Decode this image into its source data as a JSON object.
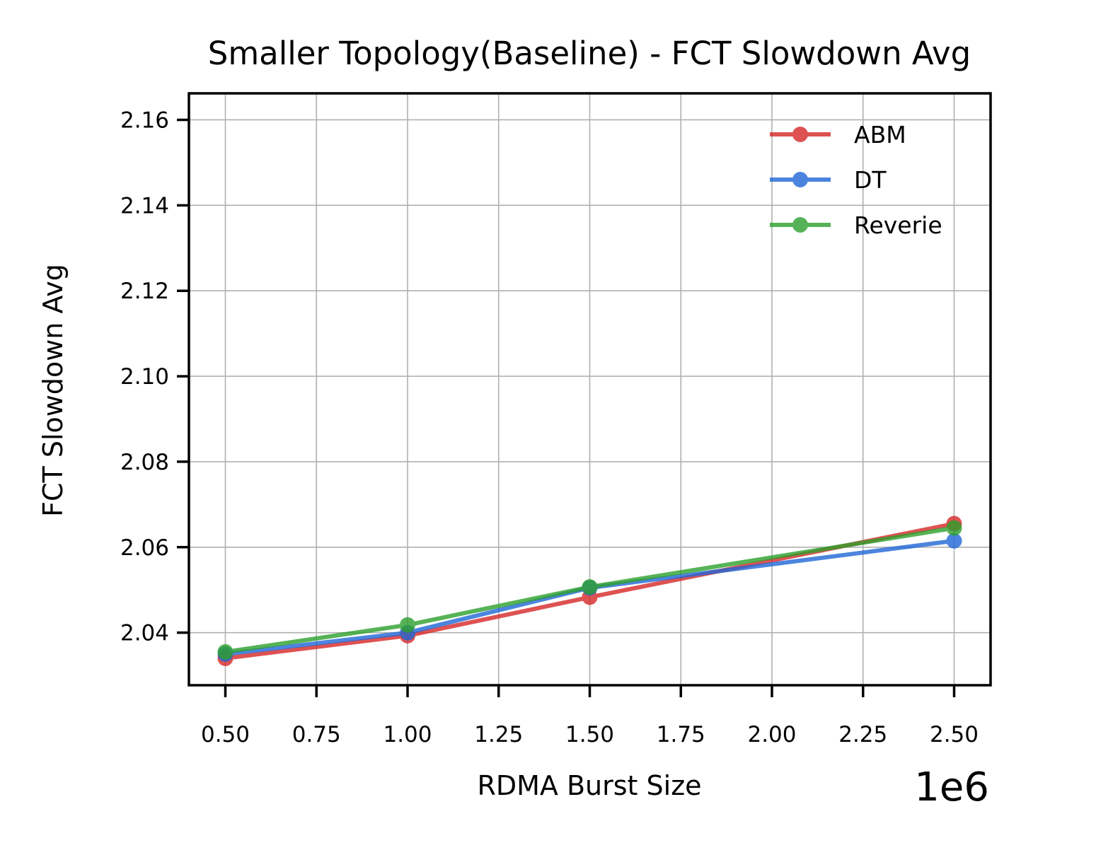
{
  "chart_data": {
    "type": "line",
    "title": "Smaller Topology(Baseline) - FCT Slowdown Avg",
    "xlabel": "RDMA Burst Size",
    "ylabel": "FCT Slowdown Avg",
    "x_offset_label": "1e6",
    "x_scale": 1000000,
    "x": [
      500000,
      1000000,
      1500000,
      2500000
    ],
    "xlim": [
      400000,
      2600000
    ],
    "ylim": [
      2.0277,
      2.1662
    ],
    "x_ticks": [
      {
        "value": 500000,
        "label": "0.50"
      },
      {
        "value": 750000,
        "label": "0.75"
      },
      {
        "value": 1000000,
        "label": "1.00"
      },
      {
        "value": 1250000,
        "label": "1.25"
      },
      {
        "value": 1500000,
        "label": "1.50"
      },
      {
        "value": 1750000,
        "label": "1.75"
      },
      {
        "value": 2000000,
        "label": "2.00"
      },
      {
        "value": 2250000,
        "label": "2.25"
      },
      {
        "value": 2500000,
        "label": "2.50"
      }
    ],
    "y_ticks": [
      {
        "value": 2.04,
        "label": "2.04"
      },
      {
        "value": 2.06,
        "label": "2.06"
      },
      {
        "value": 2.08,
        "label": "2.08"
      },
      {
        "value": 2.1,
        "label": "2.10"
      },
      {
        "value": 2.12,
        "label": "2.12"
      },
      {
        "value": 2.14,
        "label": "2.14"
      },
      {
        "value": 2.16,
        "label": "2.16"
      }
    ],
    "grid": true,
    "legend_position": "top-right",
    "series": [
      {
        "name": "ABM",
        "color": "#d62728",
        "values": [
          2.034,
          2.0393,
          2.0483,
          2.0655
        ]
      },
      {
        "name": "DT",
        "color": "#1f66d6",
        "values": [
          2.035,
          2.04,
          2.0505,
          2.0615
        ]
      },
      {
        "name": "Reverie",
        "color": "#2ca02c",
        "values": [
          2.0355,
          2.0418,
          2.0507,
          2.0645
        ]
      }
    ]
  }
}
